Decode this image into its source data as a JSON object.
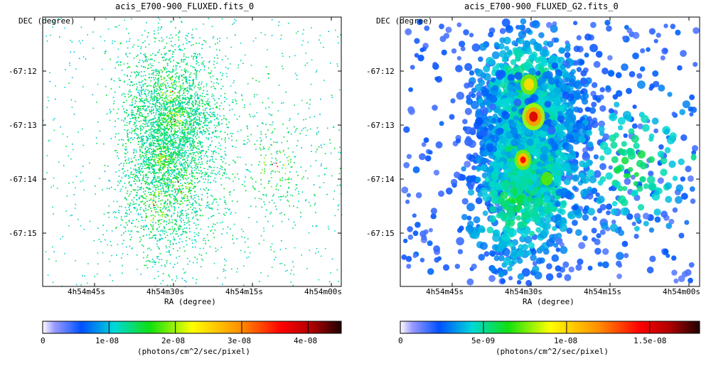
{
  "chart_data": [
    {
      "type": "heatmap",
      "title": "acis_E700-900_FLUXED.fits_0",
      "xlabel": "RA (degree)",
      "ylabel": "DEC (degree)",
      "x_ticks": [
        "4h54m45s",
        "4h54m30s",
        "4h54m15s",
        "4h54m00s"
      ],
      "y_ticks": [
        "-67:12",
        "-67:13",
        "-67:14",
        "-67:15"
      ],
      "colorbar": {
        "label": "(photons/cm^2/sec/pixel)",
        "ticks": [
          "0",
          "1e-08",
          "2e-08",
          "3e-08",
          "4e-08"
        ],
        "tick_values": [
          0,
          1e-08,
          2e-08,
          3e-08,
          4e-08
        ],
        "range": [
          0,
          4.5e-08
        ]
      },
      "smoothing": 0
    },
    {
      "type": "heatmap",
      "title": "acis_E700-900_FLUXED_G2.fits_0",
      "xlabel": "RA (degree)",
      "ylabel": "DEC (degree)",
      "x_ticks": [
        "4h54m45s",
        "4h54m30s",
        "4h54m15s",
        "4h54m00s"
      ],
      "y_ticks": [
        "-67:12",
        "-67:13",
        "-67:14",
        "-67:15"
      ],
      "colorbar": {
        "label": "(photons/cm^2/sec/pixel)",
        "ticks": [
          "0",
          "5e-09",
          "1e-08",
          "1.5e-08"
        ],
        "tick_values": [
          0,
          5e-09,
          1e-08,
          1.5e-08
        ],
        "range": [
          0,
          1.8e-08
        ]
      },
      "smoothing": 2
    }
  ]
}
